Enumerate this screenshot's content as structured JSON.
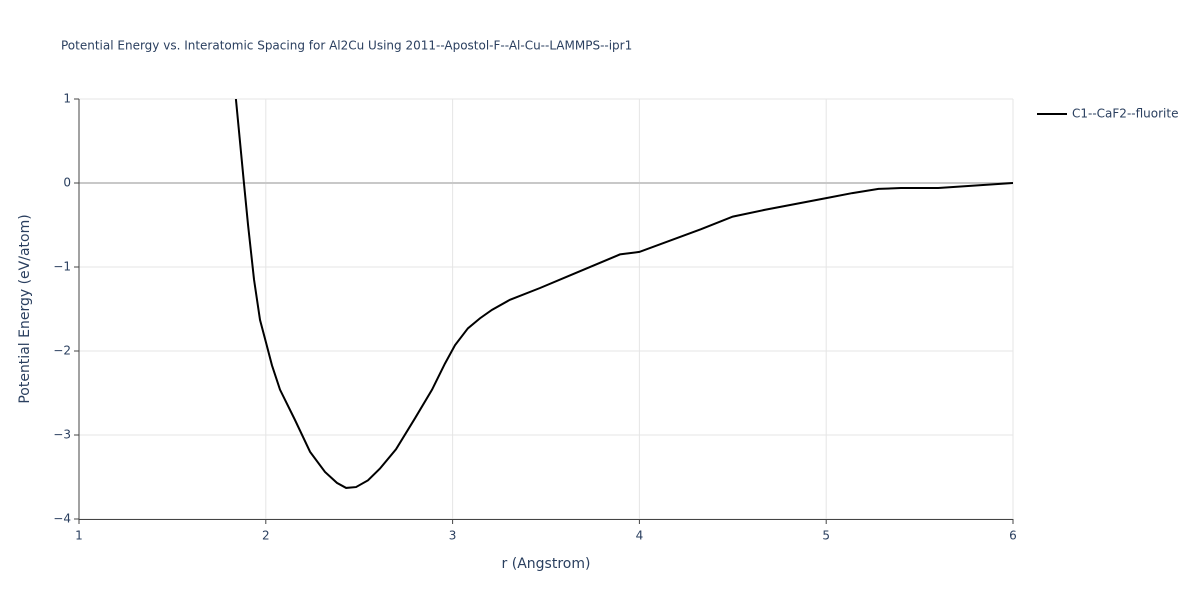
{
  "chart_data": {
    "type": "line",
    "title": "Potential Energy vs. Interatomic Spacing for Al2Cu Using 2011--Apostol-F--Al-Cu--LAMMPS--ipr1",
    "x_label": "r (Angstrom)",
    "y_label": "Potential Energy (eV/atom)",
    "x": [
      1.84,
      1.883,
      1.905,
      1.937,
      1.969,
      2.0,
      2.033,
      2.076,
      2.156,
      2.237,
      2.317,
      2.381,
      2.43,
      2.483,
      2.547,
      2.611,
      2.697,
      2.799,
      2.89,
      2.959,
      3.013,
      3.082,
      3.147,
      3.211,
      3.307,
      3.468,
      3.628,
      3.896,
      4.0,
      4.33,
      4.5,
      4.67,
      5.0,
      5.14,
      5.28,
      5.4,
      5.6,
      5.8,
      6.0
    ],
    "series": [
      {
        "name": "C1--CaF2--fluorite",
        "color": "#000000",
        "values": [
          1.0,
          0.0,
          -0.5,
          -1.15,
          -1.63,
          -1.89,
          -2.17,
          -2.46,
          -2.82,
          -3.2,
          -3.44,
          -3.57,
          -3.63,
          -3.62,
          -3.54,
          -3.4,
          -3.17,
          -2.8,
          -2.46,
          -2.15,
          -1.93,
          -1.73,
          -1.61,
          -1.51,
          -1.39,
          -1.25,
          -1.1,
          -0.85,
          -0.82,
          -0.55,
          -0.4,
          -0.32,
          -0.18,
          -0.12,
          -0.07,
          -0.06,
          -0.06,
          -0.03,
          0.0
        ]
      }
    ],
    "xlim": [
      1,
      6
    ],
    "xticks": [
      1,
      2,
      3,
      4,
      5,
      6
    ],
    "ylim": [
      -4,
      1
    ],
    "yticks": [
      {
        "value": -4,
        "label": "−4"
      },
      {
        "value": -3,
        "label": "−3"
      },
      {
        "value": -2,
        "label": "−2"
      },
      {
        "value": -1,
        "label": "−1"
      },
      0,
      1
    ],
    "grid": true,
    "legend": "outside-top-right"
  }
}
